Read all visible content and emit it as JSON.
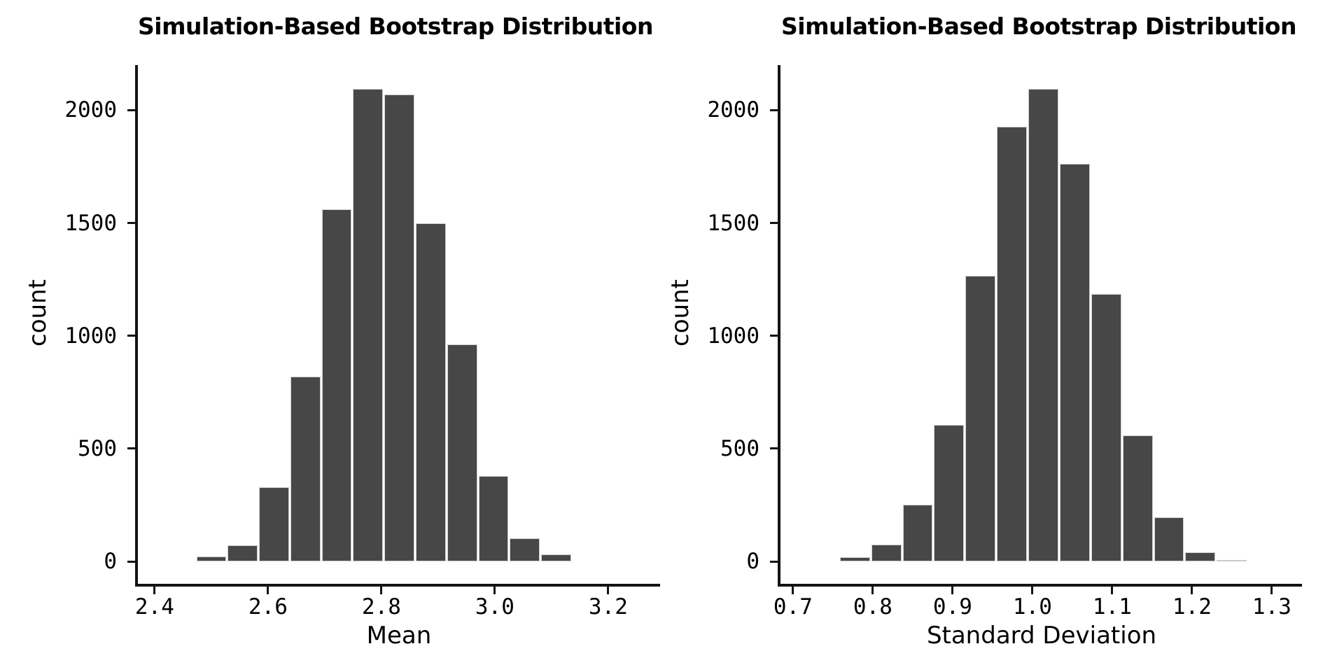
{
  "figure": {
    "background": "#ffffff",
    "text_color": "#000000",
    "axis_color": "#141414"
  },
  "chart_data": [
    {
      "type": "bar",
      "subtype": "histogram",
      "title": "Simulation-Based Bootstrap Distribution",
      "xlabel": "Mean",
      "ylabel": "count",
      "legend": null,
      "grid": false,
      "xlim": [
        2.3705,
        3.2915
      ],
      "ylim": [
        0,
        2200
      ],
      "x_ticks": [
        2.4,
        2.6,
        2.8,
        3.0,
        3.2
      ],
      "x_tick_labels": [
        "2.4",
        "2.6",
        "2.8",
        "3.0",
        "3.2"
      ],
      "y_ticks": [
        0,
        500,
        1000,
        1500,
        2000
      ],
      "y_tick_labels": [
        "0",
        "500",
        "1000",
        "1500",
        "2000"
      ],
      "bins": {
        "start": 2.4726,
        "width": 0.05526
      },
      "counts": [
        22,
        72,
        330,
        818,
        1560,
        2093,
        2071,
        1498,
        961,
        378,
        102,
        30
      ],
      "bar_fill": "#474747",
      "bar_border": "#cfcfcf",
      "bar_color_overrides": {}
    },
    {
      "type": "bar",
      "subtype": "histogram",
      "title": "Simulation-Based Bootstrap Distribution",
      "xlabel": "Standard Deviation",
      "ylabel": "count",
      "legend": null,
      "grid": false,
      "xlim": [
        0.6843,
        1.3378
      ],
      "ylim": [
        0,
        2200
      ],
      "x_ticks": [
        0.7,
        0.8,
        0.9,
        1.0,
        1.1,
        1.2,
        1.3
      ],
      "x_tick_labels": [
        "0.7",
        "0.8",
        "0.9",
        "1.0",
        "1.1",
        "1.2",
        "1.3"
      ],
      "y_ticks": [
        0,
        500,
        1000,
        1500,
        2000
      ],
      "y_tick_labels": [
        "0",
        "500",
        "1000",
        "1500",
        "2000"
      ],
      "bins": {
        "start": 0.7578,
        "width": 0.03937
      },
      "counts": [
        18,
        74,
        251,
        605,
        1265,
        1926,
        2093,
        1761,
        1185,
        558,
        195,
        40,
        6
      ],
      "bar_fill": "#474747",
      "bar_border": "#cfcfcf",
      "bar_color_overrides": {
        "12": "#c9c9c9"
      }
    }
  ]
}
